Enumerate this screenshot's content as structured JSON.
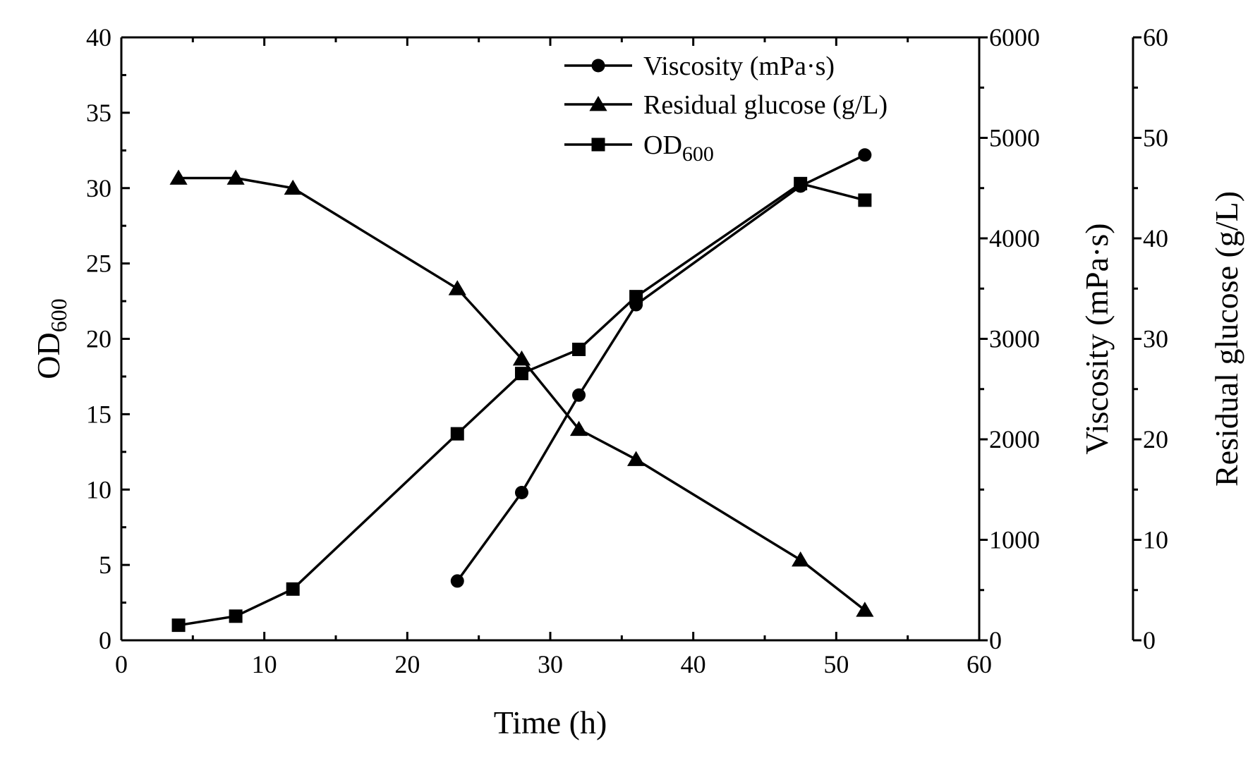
{
  "chart_data": {
    "type": "line",
    "xlabel": "Time (h)",
    "xlim": [
      0,
      60
    ],
    "x_ticks": [
      "0",
      "10",
      "20",
      "30",
      "40",
      "50",
      "60"
    ],
    "left_axis": {
      "label_main": "OD",
      "label_sub": "600",
      "lim": [
        0,
        40
      ],
      "ticks": [
        "0",
        "5",
        "10",
        "15",
        "20",
        "25",
        "30",
        "35",
        "40"
      ]
    },
    "right_axis_1": {
      "label": "Viscosity (mPa·s)",
      "lim": [
        0,
        6000
      ],
      "ticks": [
        "0",
        "1000",
        "2000",
        "3000",
        "4000",
        "5000",
        "6000"
      ]
    },
    "right_axis_2": {
      "label": "Residual glucose (g/L)",
      "lim": [
        0,
        60
      ],
      "ticks": [
        "0",
        "10",
        "20",
        "30",
        "40",
        "50",
        "60"
      ]
    },
    "series": [
      {
        "name": "Viscosity (mPa·s)",
        "marker": "circle",
        "axis": "right_axis_1",
        "x": [
          23.5,
          28,
          32,
          36,
          47.5,
          52
        ],
        "values": [
          590,
          1470,
          2440,
          3340,
          4520,
          4830
        ]
      },
      {
        "name": "Residual glucose (g/L)",
        "marker": "triangle",
        "axis": "right_axis_2",
        "x": [
          4,
          8,
          12,
          23.5,
          28,
          32,
          36,
          47.5,
          52
        ],
        "values": [
          46,
          46,
          45,
          35,
          28,
          21,
          18,
          8,
          3
        ]
      },
      {
        "name": "OD",
        "name_sub": "600",
        "marker": "square",
        "axis": "left_axis",
        "x": [
          4,
          8,
          12,
          23.5,
          28,
          32,
          36,
          47.5,
          52
        ],
        "values": [
          1.0,
          1.6,
          3.4,
          13.7,
          17.7,
          19.3,
          22.8,
          30.3,
          29.2
        ]
      }
    ],
    "legend_position": "top-right",
    "grid": false
  }
}
